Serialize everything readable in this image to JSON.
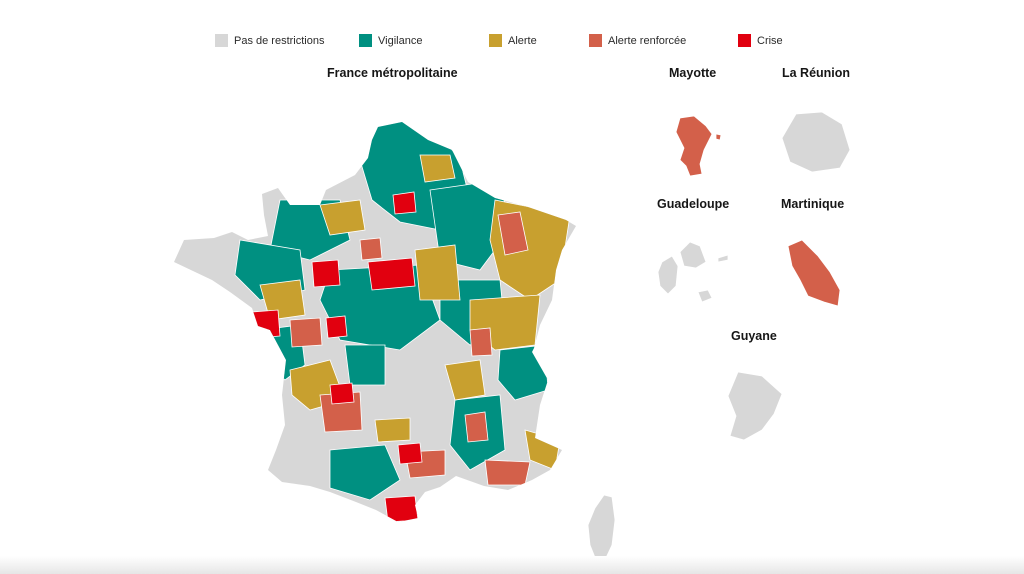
{
  "legend": {
    "items": [
      {
        "id": "none",
        "label": "Pas de restrictions",
        "color": "#d7d7d7"
      },
      {
        "id": "vigilance",
        "label": "Vigilance",
        "color": "#009081"
      },
      {
        "id": "alerte",
        "label": "Alerte",
        "color": "#c8a02f"
      },
      {
        "id": "renforcee",
        "label": "Alerte renforcée",
        "color": "#d3604a"
      },
      {
        "id": "crise",
        "label": "Crise",
        "color": "#e1000f"
      }
    ]
  },
  "maps": {
    "metropole": "France métropolitaine",
    "mayotte": "Mayotte",
    "reunion": "La Réunion",
    "guadeloupe": "Guadeloupe",
    "martinique": "Martinique",
    "guyane": "Guyane"
  },
  "territory_status": {
    "mayotte": "renforcee",
    "reunion": "none",
    "guadeloupe": "none",
    "martinique": "renforcee",
    "guyane": "none",
    "corse": "none"
  }
}
